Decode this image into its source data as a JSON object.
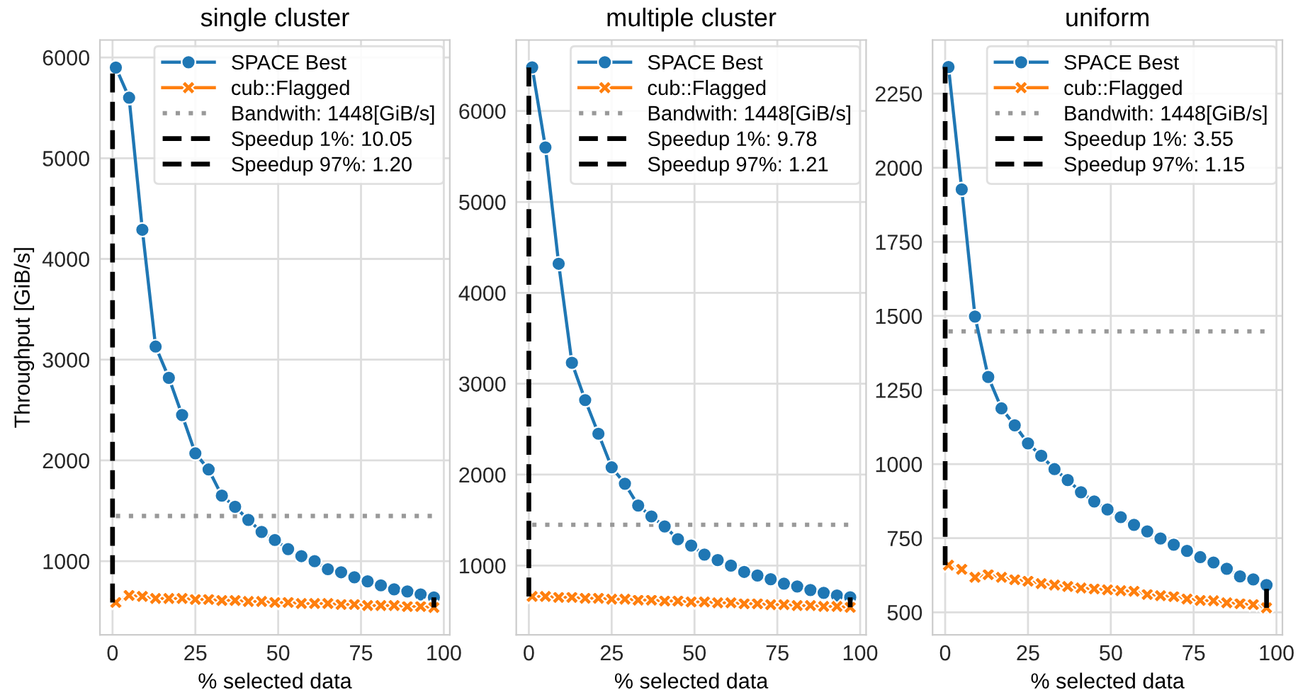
{
  "chart_data": [
    {
      "type": "line",
      "title": "single cluster",
      "xlabel": "% selected data",
      "ylabel": "Throughput [GiB/s]",
      "xlim": [
        -3.8,
        101.8
      ],
      "xticks": [
        0,
        25,
        50,
        75,
        100
      ],
      "ylim": [
        269,
        6173
      ],
      "yticks": [
        1000,
        2000,
        3000,
        4000,
        5000,
        6000
      ],
      "grid": true,
      "legend": "top right",
      "x": [
        1,
        5,
        9,
        13,
        17,
        21,
        25,
        29,
        33,
        37,
        41,
        45,
        49,
        53,
        57,
        61,
        65,
        69,
        73,
        77,
        81,
        85,
        89,
        93,
        97
      ],
      "series": [
        {
          "name": "SPACE Best",
          "color": "#1f77b4",
          "marker": "circle",
          "line_style": "solid",
          "values": [
            5900,
            5600,
            4290,
            3130,
            2820,
            2450,
            2070,
            1910,
            1650,
            1540,
            1410,
            1290,
            1210,
            1120,
            1050,
            1000,
            920,
            890,
            840,
            800,
            760,
            720,
            700,
            670,
            640
          ]
        },
        {
          "name": "cub::Flagged",
          "color": "#ff7f0e",
          "marker": "cross",
          "line_style": "solid",
          "values": [
            590,
            660,
            650,
            630,
            630,
            630,
            620,
            620,
            610,
            610,
            600,
            600,
            590,
            590,
            580,
            580,
            580,
            570,
            570,
            560,
            560,
            560,
            550,
            550,
            540
          ]
        },
        {
          "name": "Bandwith: 1448[GiB/s]",
          "color": "#999999",
          "marker": "none",
          "line_style": "dotted",
          "x": [
            1,
            97
          ],
          "values": [
            1448,
            1448
          ]
        },
        {
          "name": "Speedup 1%: 10.05",
          "color": "#000000",
          "marker": "none",
          "line_style": "dashed",
          "x": [
            0,
            0
          ],
          "values": [
            590,
            5900
          ]
        },
        {
          "name": "Speedup 97%: 1.20",
          "color": "#000000",
          "marker": "none",
          "line_style": "dashed",
          "x": [
            97,
            97
          ],
          "values": [
            540,
            640
          ]
        }
      ]
    },
    {
      "type": "line",
      "title": "multiple cluster",
      "xlabel": "% selected data",
      "xlim": [
        -3.8,
        101.8
      ],
      "xticks": [
        0,
        25,
        50,
        75,
        100
      ],
      "ylim": [
        238,
        6781
      ],
      "yticks": [
        1000,
        2000,
        3000,
        4000,
        5000,
        6000
      ],
      "grid": true,
      "legend": "top right",
      "x": [
        1,
        5,
        9,
        13,
        17,
        21,
        25,
        29,
        33,
        37,
        41,
        45,
        49,
        53,
        57,
        61,
        65,
        69,
        73,
        77,
        81,
        85,
        89,
        93,
        97
      ],
      "series": [
        {
          "name": "SPACE Best",
          "color": "#1f77b4",
          "marker": "circle",
          "line_style": "solid",
          "values": [
            6480,
            5600,
            4320,
            3230,
            2820,
            2450,
            2080,
            1900,
            1660,
            1540,
            1430,
            1290,
            1220,
            1120,
            1060,
            1000,
            930,
            890,
            850,
            800,
            770,
            730,
            700,
            670,
            650
          ]
        },
        {
          "name": "cub::Flagged",
          "color": "#ff7f0e",
          "marker": "cross",
          "line_style": "solid",
          "values": [
            660,
            660,
            650,
            650,
            640,
            640,
            630,
            630,
            620,
            620,
            610,
            610,
            600,
            600,
            590,
            590,
            580,
            580,
            570,
            570,
            560,
            560,
            550,
            550,
            540
          ]
        },
        {
          "name": "Bandwith: 1448[GiB/s]",
          "color": "#999999",
          "marker": "none",
          "line_style": "dotted",
          "x": [
            1,
            97
          ],
          "values": [
            1448,
            1448
          ]
        },
        {
          "name": "Speedup 1%: 9.78",
          "color": "#000000",
          "marker": "none",
          "line_style": "dashed",
          "x": [
            0,
            0
          ],
          "values": [
            660,
            6480
          ]
        },
        {
          "name": "Speedup 97%: 1.21",
          "color": "#000000",
          "marker": "none",
          "line_style": "dashed",
          "x": [
            97,
            97
          ],
          "values": [
            540,
            650
          ]
        }
      ]
    },
    {
      "type": "line",
      "title": "uniform",
      "xlabel": "% selected data",
      "xlim": [
        -3.8,
        101.8
      ],
      "xticks": [
        0,
        25,
        50,
        75,
        100
      ],
      "ylim": [
        424,
        2431
      ],
      "yticks": [
        500,
        750,
        1000,
        1250,
        1500,
        1750,
        2000,
        2250
      ],
      "grid": true,
      "legend": "top right",
      "x": [
        1,
        5,
        9,
        13,
        17,
        21,
        25,
        29,
        33,
        37,
        41,
        45,
        49,
        53,
        57,
        61,
        65,
        69,
        73,
        77,
        81,
        85,
        89,
        93,
        97
      ],
      "series": [
        {
          "name": "SPACE Best",
          "color": "#1f77b4",
          "marker": "circle",
          "line_style": "solid",
          "values": [
            2340,
            1927,
            1498,
            1294,
            1188,
            1131,
            1070,
            1028,
            983,
            946,
            905,
            874,
            847,
            821,
            795,
            773,
            749,
            728,
            707,
            686,
            668,
            647,
            621,
            611,
            592
          ]
        },
        {
          "name": "cub::Flagged",
          "color": "#ff7f0e",
          "marker": "cross",
          "line_style": "solid",
          "values": [
            659,
            645,
            618,
            627,
            618,
            610,
            605,
            597,
            592,
            587,
            582,
            579,
            576,
            573,
            571,
            560,
            556,
            553,
            545,
            540,
            539,
            532,
            529,
            526,
            515
          ]
        },
        {
          "name": "Bandwith: 1448[GiB/s]",
          "color": "#999999",
          "marker": "none",
          "line_style": "dotted",
          "x": [
            1,
            97
          ],
          "values": [
            1448,
            1448
          ]
        },
        {
          "name": "Speedup 1%: 3.55",
          "color": "#000000",
          "marker": "none",
          "line_style": "dashed",
          "x": [
            0,
            0
          ],
          "values": [
            659,
            2340
          ]
        },
        {
          "name": "Speedup 97%: 1.15",
          "color": "#000000",
          "marker": "none",
          "line_style": "dashed",
          "x": [
            97,
            97
          ],
          "values": [
            515,
            592
          ]
        }
      ]
    }
  ]
}
